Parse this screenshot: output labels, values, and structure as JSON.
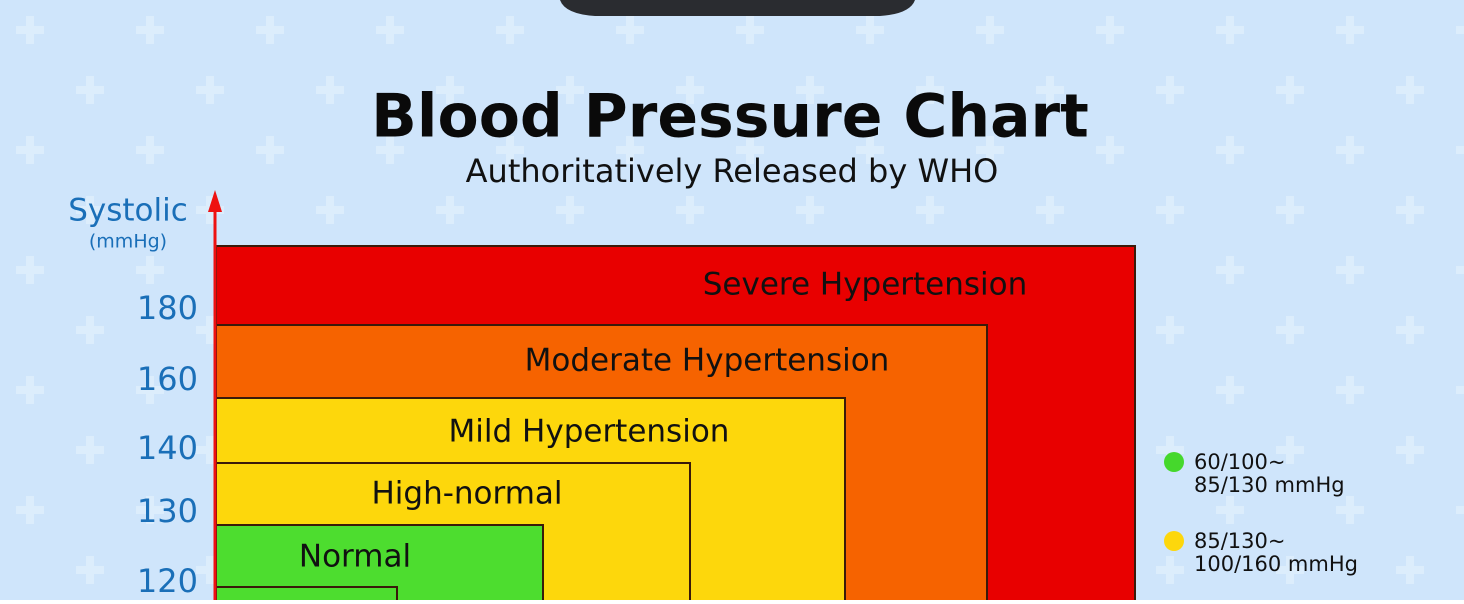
{
  "header": {
    "title": "Blood Pressure Chart",
    "subtitle": "Authoritatively Released by WHO"
  },
  "axis": {
    "label": "Systolic",
    "unit": "(mmHg)",
    "ticks": [
      180,
      160,
      140,
      130,
      120
    ]
  },
  "zones": [
    {
      "label": "Severe Hypertension",
      "color": "#e80000"
    },
    {
      "label": "Moderate Hypertension",
      "color": "#f66300"
    },
    {
      "label": "Mild Hypertension",
      "color": "#fdd70c"
    },
    {
      "label": "High-normal",
      "color": "#fdd70c"
    },
    {
      "label": "Normal",
      "color": "#4ddd2f"
    },
    {
      "color": "#4ddd2f"
    }
  ],
  "legend": [
    {
      "color": "#45d82c",
      "lines": [
        "60/100~",
        "85/130 mmHg"
      ]
    },
    {
      "color": "#fdd70c",
      "lines": [
        "85/130~",
        "100/160 mmHg"
      ]
    }
  ]
}
